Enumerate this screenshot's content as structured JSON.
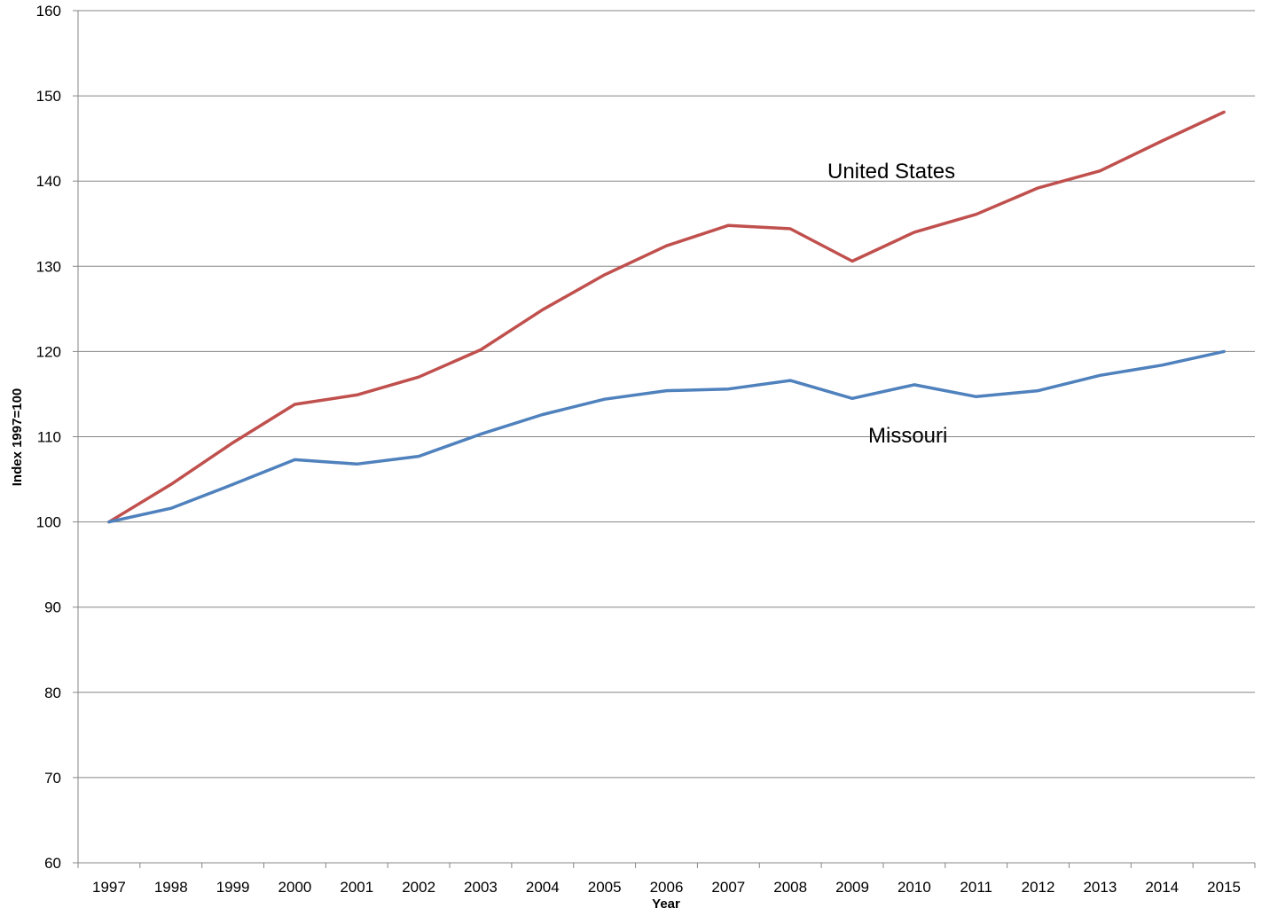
{
  "chart_data": {
    "type": "line",
    "title": "",
    "xlabel": "Year",
    "ylabel": "Index 1997=100",
    "ylim": [
      60,
      160
    ],
    "yticks": [
      60,
      70,
      80,
      90,
      100,
      110,
      120,
      130,
      140,
      150,
      160
    ],
    "grid": "horizontal",
    "legend": "inline labels",
    "categories": [
      "1997",
      "1998",
      "1999",
      "2000",
      "2001",
      "2002",
      "2003",
      "2004",
      "2005",
      "2006",
      "2007",
      "2008",
      "2009",
      "2010",
      "2011",
      "2012",
      "2013",
      "2014",
      "2015"
    ],
    "series": [
      {
        "name": "United States",
        "color": "#C0504D",
        "values": [
          100,
          104.4,
          109.3,
          113.8,
          114.9,
          117.0,
          120.2,
          124.9,
          129.0,
          132.4,
          134.8,
          134.4,
          130.6,
          134.0,
          136.1,
          139.2,
          141.2,
          144.7,
          148.1
        ]
      },
      {
        "name": "Missouri",
        "color": "#4F81BD",
        "values": [
          100,
          101.6,
          104.4,
          107.3,
          106.8,
          107.7,
          110.3,
          112.6,
          114.4,
          115.4,
          115.6,
          116.6,
          114.5,
          116.1,
          114.7,
          115.4,
          117.2,
          118.4,
          120.0
        ]
      }
    ]
  }
}
